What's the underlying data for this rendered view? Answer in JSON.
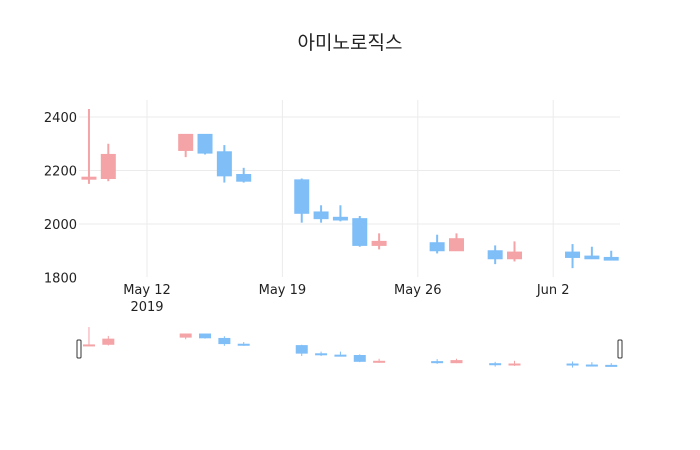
{
  "title": "아미노로직스",
  "colors": {
    "increasing": "#f4a3a6",
    "decreasing": "#7fbef7",
    "grid": "#ebebeb"
  },
  "chart_data": {
    "type": "candlestick",
    "title": "아미노로직스",
    "xlabel": "",
    "ylabel": "",
    "ylim": [
      1800,
      2460
    ],
    "y_ticks": [
      1800,
      2000,
      2200,
      2400
    ],
    "x_ticks": [
      {
        "label": "May 12",
        "sub": "2019",
        "date": "2019-05-12"
      },
      {
        "label": "May 19",
        "sub": "",
        "date": "2019-05-19"
      },
      {
        "label": "May 26",
        "sub": "",
        "date": "2019-05-26"
      },
      {
        "label": "Jun 2",
        "sub": "",
        "date": "2019-06-02"
      }
    ],
    "x_range": [
      "2019-05-08",
      "2019-06-06"
    ],
    "range_slider": true,
    "grid": true,
    "series": [
      {
        "date": "2019-05-09",
        "open": 2170,
        "high": 2430,
        "low": 2150,
        "close": 2175
      },
      {
        "date": "2019-05-10",
        "open": 2170,
        "high": 2300,
        "low": 2160,
        "close": 2260
      },
      {
        "date": "2019-05-14",
        "open": 2275,
        "high": 2335,
        "low": 2250,
        "close": 2335
      },
      {
        "date": "2019-05-15",
        "open": 2335,
        "high": 2335,
        "low": 2260,
        "close": 2265
      },
      {
        "date": "2019-05-16",
        "open": 2270,
        "high": 2295,
        "low": 2155,
        "close": 2180
      },
      {
        "date": "2019-05-17",
        "open": 2185,
        "high": 2210,
        "low": 2155,
        "close": 2160
      },
      {
        "date": "2019-05-20",
        "open": 2165,
        "high": 2170,
        "low": 2005,
        "close": 2040
      },
      {
        "date": "2019-05-21",
        "open": 2045,
        "high": 2070,
        "low": 2005,
        "close": 2020
      },
      {
        "date": "2019-05-22",
        "open": 2025,
        "high": 2070,
        "low": 2010,
        "close": 2015
      },
      {
        "date": "2019-05-23",
        "open": 2020,
        "high": 2030,
        "low": 1915,
        "close": 1920
      },
      {
        "date": "2019-05-24",
        "open": 1920,
        "high": 1965,
        "low": 1905,
        "close": 1935
      },
      {
        "date": "2019-05-27",
        "open": 1930,
        "high": 1960,
        "low": 1890,
        "close": 1900
      },
      {
        "date": "2019-05-28",
        "open": 1900,
        "high": 1965,
        "low": 1900,
        "close": 1945
      },
      {
        "date": "2019-05-30",
        "open": 1900,
        "high": 1920,
        "low": 1850,
        "close": 1870
      },
      {
        "date": "2019-05-31",
        "open": 1870,
        "high": 1935,
        "low": 1860,
        "close": 1895
      },
      {
        "date": "2019-06-03",
        "open": 1895,
        "high": 1925,
        "low": 1835,
        "close": 1875
      },
      {
        "date": "2019-06-04",
        "open": 1880,
        "high": 1915,
        "low": 1870,
        "close": 1870
      },
      {
        "date": "2019-06-05",
        "open": 1875,
        "high": 1900,
        "low": 1865,
        "close": 1865
      }
    ]
  }
}
